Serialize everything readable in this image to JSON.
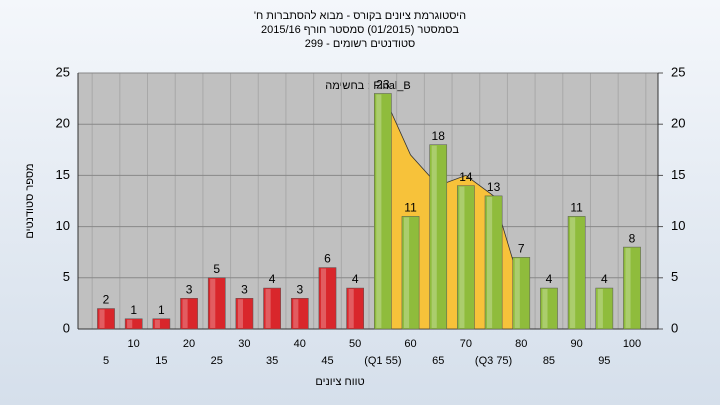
{
  "chart_data": {
    "type": "bar",
    "title": [
      "היסטוגרמת ציונים בקורס - מבוא להסתברות ח'",
      "בסמסטר (01/2015) סמסטר חורף 2015/16",
      "סטודנטים רשומים - 299"
    ],
    "annotation": "בחשימה : Final_B",
    "x_label": "טווח ציונים",
    "y_label": "מספר סטודנטים",
    "categories": [
      "5",
      "10",
      "15",
      "20",
      "25",
      "30",
      "35",
      "40",
      "45",
      "50",
      "(Q1 55)",
      "60",
      "65",
      "70",
      "(Q3 75)",
      "80",
      "85",
      "90",
      "95",
      "100"
    ],
    "values": [
      2,
      1,
      1,
      3,
      5,
      3,
      4,
      3,
      6,
      4,
      23,
      11,
      18,
      14,
      13,
      7,
      4,
      11,
      4,
      8
    ],
    "colors": [
      "#d9262b",
      "#d9262b",
      "#d9262b",
      "#d9262b",
      "#d9262b",
      "#d9262b",
      "#d9262b",
      "#d9262b",
      "#d9262b",
      "#d9262b",
      "#8fbc3c",
      "#8fbc3c",
      "#8fbc3c",
      "#8fbc3c",
      "#8fbc3c",
      "#8fbc3c",
      "#8fbc3c",
      "#8fbc3c",
      "#8fbc3c",
      "#8fbc3c"
    ],
    "overlay": {
      "color": "#f7c23a",
      "values": [
        null,
        null,
        null,
        null,
        null,
        null,
        null,
        null,
        null,
        null,
        23,
        17,
        14,
        15,
        13,
        4,
        null,
        null,
        null,
        null
      ]
    },
    "ylim": [
      0,
      25
    ],
    "yticks": [
      0,
      5,
      10,
      15,
      20,
      25
    ],
    "y2lim": [
      0,
      25
    ],
    "y2ticks": [
      0,
      5,
      10,
      15,
      20,
      25
    ],
    "grid": true
  }
}
